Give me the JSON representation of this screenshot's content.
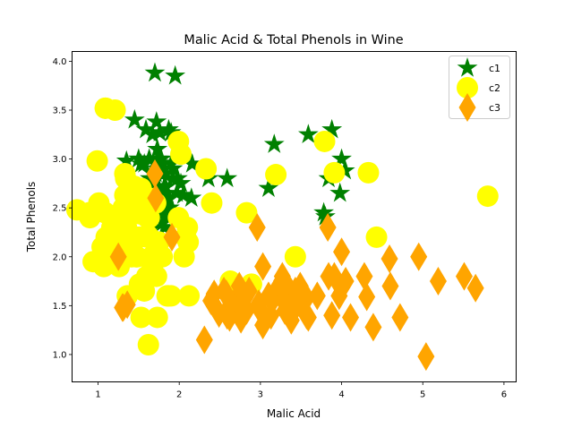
{
  "chart_data": {
    "type": "scatter",
    "title": "Malic Acid & Total Phenols in Wine",
    "xlabel": "Malic Acid",
    "ylabel": "Total Phenols",
    "xlim": [
      0.68,
      6.15
    ],
    "ylim": [
      0.72,
      4.1
    ],
    "xticks": [
      1,
      2,
      3,
      4,
      5,
      6
    ],
    "yticks": [
      1.0,
      1.5,
      2.0,
      2.5,
      3.0,
      3.5,
      4.0
    ],
    "ytick_labels": [
      "1.0",
      "1.5",
      "2.0",
      "2.5",
      "3.0",
      "3.5",
      "4.0"
    ],
    "grid": false,
    "legend_position": "top-right",
    "series": [
      {
        "name": "c1",
        "marker": "star",
        "color": "#008000",
        "points": [
          [
            1.71,
            2.8
          ],
          [
            1.78,
            2.65
          ],
          [
            2.36,
            2.8
          ],
          [
            1.95,
            3.85
          ],
          [
            2.59,
            2.8
          ],
          [
            1.76,
            3.27
          ],
          [
            1.87,
            2.5
          ],
          [
            2.15,
            2.6
          ],
          [
            1.64,
            2.8
          ],
          [
            1.35,
            2.98
          ],
          [
            2.16,
            2.95
          ],
          [
            1.48,
            2.2
          ],
          [
            1.73,
            2.6
          ],
          [
            1.73,
            3.1
          ],
          [
            1.87,
            3.3
          ],
          [
            1.81,
            2.85
          ],
          [
            1.92,
            2.8
          ],
          [
            1.57,
            2.95
          ],
          [
            1.59,
            3.3
          ],
          [
            3.1,
            2.7
          ],
          [
            1.63,
            3.0
          ],
          [
            3.8,
            2.41
          ],
          [
            1.86,
            2.61
          ],
          [
            1.6,
            2.48
          ],
          [
            1.81,
            2.53
          ],
          [
            2.05,
            2.63
          ],
          [
            1.77,
            2.85
          ],
          [
            1.72,
            2.4
          ],
          [
            1.9,
            2.95
          ],
          [
            1.68,
            2.65
          ],
          [
            1.5,
            3.0
          ],
          [
            1.66,
            2.86
          ],
          [
            1.83,
            2.42
          ],
          [
            1.53,
            2.95
          ],
          [
            1.8,
            2.35
          ],
          [
            1.81,
            2.7
          ],
          [
            1.64,
            2.6
          ],
          [
            1.65,
            2.45
          ],
          [
            1.5,
            3.0
          ],
          [
            3.17,
            3.15
          ],
          [
            1.47,
            2.45
          ],
          [
            3.88,
            3.3
          ],
          [
            1.71,
            2.85
          ],
          [
            3.84,
            2.8
          ],
          [
            1.9,
            3.27
          ],
          [
            4.04,
            2.88
          ],
          [
            1.73,
            3.0
          ],
          [
            1.79,
            2.96
          ],
          [
            1.83,
            2.72
          ],
          [
            1.72,
            3.38
          ],
          [
            3.59,
            3.25
          ],
          [
            1.7,
            3.88
          ],
          [
            1.73,
            2.9
          ],
          [
            1.67,
            3.25
          ],
          [
            2.02,
            2.75
          ],
          [
            1.74,
            2.7
          ],
          [
            1.63,
            3.0
          ],
          [
            1.82,
            2.3
          ],
          [
            1.45,
            3.4
          ],
          [
            3.78,
            2.45
          ],
          [
            1.97,
            2.65
          ],
          [
            1.98,
            2.8
          ],
          [
            4.0,
            3.0
          ],
          [
            3.98,
            2.65
          ],
          [
            1.62,
            2.72
          ],
          [
            1.75,
            3.0
          ],
          [
            1.85,
            2.5
          ],
          [
            1.84,
            2.5
          ],
          [
            1.71,
            2.4
          ],
          [
            1.68,
            2.3
          ],
          [
            1.69,
            2.2
          ],
          [
            1.88,
            2.5
          ],
          [
            1.7,
            2.5
          ],
          [
            1.72,
            2.65
          ],
          [
            1.78,
            3.0
          ],
          [
            1.87,
            2.6
          ],
          [
            1.92,
            2.9
          ]
        ]
      },
      {
        "name": "c2",
        "marker": "circle",
        "color": "#ffff00",
        "points": [
          [
            0.94,
            1.95
          ],
          [
            1.1,
            2.2
          ],
          [
            1.36,
            1.6
          ],
          [
            1.25,
            2.1
          ],
          [
            1.13,
            2.05
          ],
          [
            1.51,
            2.2
          ],
          [
            1.73,
            1.38
          ],
          [
            1.39,
            2.2
          ],
          [
            1.2,
            2.0
          ],
          [
            1.87,
            1.6
          ],
          [
            0.9,
            2.4
          ],
          [
            1.62,
            1.1
          ],
          [
            1.67,
            2.0
          ],
          [
            1.24,
            2.3
          ],
          [
            1.47,
            2.0
          ],
          [
            1.51,
            1.72
          ],
          [
            1.61,
            2.2
          ],
          [
            1.17,
            2.25
          ],
          [
            1.09,
            3.52
          ],
          [
            1.36,
            2.56
          ],
          [
            2.08,
            2.2
          ],
          [
            1.09,
            3.52
          ],
          [
            1.67,
            2.55
          ],
          [
            1.53,
            1.38
          ],
          [
            0.99,
            2.98
          ],
          [
            1.61,
            2.4
          ],
          [
            1.53,
            2.7
          ],
          [
            1.33,
            2.85
          ],
          [
            1.63,
            2.4
          ],
          [
            1.31,
            2.5
          ],
          [
            1.24,
            2.4
          ],
          [
            3.43,
            2.0
          ],
          [
            0.74,
            2.48
          ],
          [
            1.99,
            2.4
          ],
          [
            1.67,
            1.9
          ],
          [
            1.28,
            2.0
          ],
          [
            1.34,
            2.2
          ],
          [
            1.21,
            3.5
          ],
          [
            0.89,
            2.45
          ],
          [
            1.07,
            1.93
          ],
          [
            2.4,
            2.55
          ],
          [
            1.9,
            1.6
          ],
          [
            1.07,
            1.9
          ],
          [
            1.41,
            2.0
          ],
          [
            1.99,
            3.18
          ],
          [
            2.12,
            1.6
          ],
          [
            1.48,
            2.2
          ],
          [
            1.26,
            1.9
          ],
          [
            3.79,
            3.18
          ],
          [
            2.06,
            2.0
          ],
          [
            2.1,
            2.3
          ],
          [
            1.4,
            2.5
          ],
          [
            1.45,
            2.72
          ],
          [
            2.83,
            2.45
          ],
          [
            1.25,
            2.4
          ],
          [
            1.63,
            2.6
          ],
          [
            1.57,
            1.65
          ],
          [
            1.34,
            2.8
          ],
          [
            1.66,
            2.0
          ],
          [
            2.02,
            3.05
          ],
          [
            1.17,
            2.3
          ],
          [
            3.91,
            2.86
          ],
          [
            1.47,
            2.5
          ],
          [
            2.33,
            2.9
          ],
          [
            2.11,
            2.15
          ],
          [
            1.51,
            2.44
          ],
          [
            1.61,
            2.22
          ],
          [
            1.6,
            1.8
          ],
          [
            4.43,
            2.2
          ],
          [
            3.19,
            2.84
          ],
          [
            4.33,
            2.86
          ],
          [
            1.71,
            2.55
          ],
          [
            5.8,
            2.62
          ],
          [
            1.09,
            2.45
          ],
          [
            1.79,
            2.0
          ],
          [
            1.48,
            2.0
          ],
          [
            2.89,
            1.72
          ],
          [
            2.76,
            1.65
          ],
          [
            1.05,
            2.1
          ],
          [
            1.72,
            1.8
          ],
          [
            1.85,
            1.6
          ],
          [
            1.33,
            2.63
          ],
          [
            1.12,
            1.95
          ],
          [
            1.01,
            2.55
          ],
          [
            1.86,
            1.6
          ],
          [
            1.63,
            2.2
          ],
          [
            1.75,
            2.15
          ],
          [
            1.35,
            2.3
          ],
          [
            1.08,
            2.0
          ],
          [
            2.63,
            1.75
          ]
        ]
      },
      {
        "name": "c3",
        "marker": "diamond",
        "color": "#ffa500",
        "points": [
          [
            1.7,
            2.85
          ],
          [
            1.31,
            1.48
          ],
          [
            2.55,
            1.65
          ],
          [
            1.71,
            2.6
          ],
          [
            1.36,
            1.51
          ],
          [
            4.6,
            1.7
          ],
          [
            3.03,
            1.9
          ],
          [
            3.38,
            1.35
          ],
          [
            3.55,
            1.6
          ],
          [
            2.61,
            1.48
          ],
          [
            5.04,
            0.98
          ],
          [
            3.59,
            1.38
          ],
          [
            1.91,
            2.2
          ],
          [
            3.03,
            1.3
          ],
          [
            4.72,
            1.38
          ],
          [
            2.49,
            1.42
          ],
          [
            2.69,
            1.55
          ],
          [
            3.29,
            1.54
          ],
          [
            3.3,
            1.45
          ],
          [
            3.29,
            1.6
          ],
          [
            5.19,
            1.75
          ],
          [
            3.84,
            1.8
          ],
          [
            1.25,
            2.0
          ],
          [
            3.83,
            2.3
          ],
          [
            4.0,
            2.05
          ],
          [
            3.57,
            1.58
          ],
          [
            2.59,
            1.4
          ],
          [
            3.25,
            1.72
          ],
          [
            3.7,
            1.6
          ],
          [
            1.3,
            1.48
          ],
          [
            4.31,
            1.59
          ],
          [
            2.39,
            1.55
          ],
          [
            2.96,
            2.3
          ],
          [
            3.34,
            1.53
          ],
          [
            3.19,
            1.65
          ],
          [
            2.58,
            1.62
          ],
          [
            2.68,
            1.48
          ],
          [
            2.31,
            1.15
          ],
          [
            4.28,
            1.8
          ],
          [
            2.76,
            1.36
          ],
          [
            3.43,
            1.48
          ],
          [
            3.88,
            1.4
          ],
          [
            2.83,
            1.45
          ],
          [
            3.91,
            1.8
          ],
          [
            2.81,
            1.58
          ],
          [
            3.16,
            1.57
          ],
          [
            5.51,
            1.8
          ],
          [
            4.59,
            1.98
          ],
          [
            5.65,
            1.68
          ],
          [
            3.37,
            1.65
          ],
          [
            3.45,
            1.55
          ],
          [
            2.43,
            1.62
          ],
          [
            4.95,
            2.0
          ],
          [
            3.36,
            1.48
          ],
          [
            4.11,
            1.38
          ],
          [
            3.0,
            1.45
          ],
          [
            2.86,
            1.65
          ],
          [
            2.74,
            1.7
          ],
          [
            3.13,
            1.4
          ],
          [
            3.43,
            1.65
          ],
          [
            3.57,
            1.4
          ],
          [
            3.97,
            1.6
          ],
          [
            4.05,
            1.75
          ],
          [
            3.49,
            1.7
          ],
          [
            3.1,
            1.6
          ],
          [
            2.62,
            1.38
          ],
          [
            4.39,
            1.28
          ],
          [
            3.27,
            1.8
          ],
          [
            2.98,
            1.52
          ],
          [
            3.26,
            1.75
          ]
        ]
      }
    ]
  }
}
